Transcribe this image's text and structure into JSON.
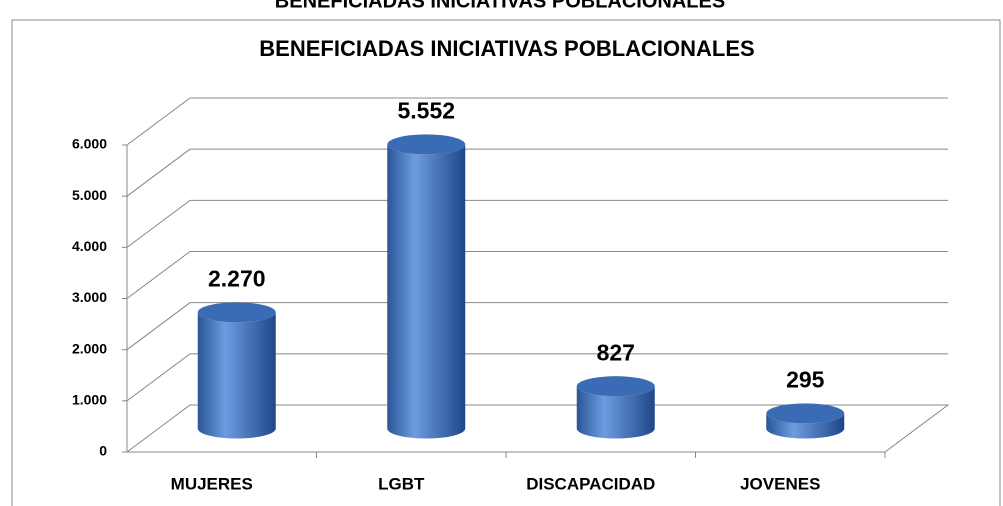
{
  "page_title": "BENEFICIADAS INICIATIVAS POBLACIONALES",
  "chart_data": {
    "type": "bar",
    "title": "BENEFICIADAS INICIATIVAS POBLACIONALES",
    "categories": [
      "MUJERES",
      "LGBT",
      "DISCAPACIDAD",
      "JOVENES"
    ],
    "values": [
      2270,
      5552,
      827,
      295
    ],
    "value_labels": [
      "2.270",
      "5.552",
      "827",
      "295"
    ],
    "color": "#3c70b8",
    "ylim": [
      0,
      6000
    ],
    "yticks": [
      0,
      {
        "value": 1000,
        "label": "1.000"
      },
      {
        "value": 2000,
        "label": "2.000"
      },
      {
        "value": 3000,
        "label": "3.000"
      },
      {
        "value": 4000,
        "label": "4.000"
      },
      {
        "value": 5000,
        "label": "5.000"
      },
      {
        "value": 6000,
        "label": "6.000"
      }
    ],
    "grid": true
  }
}
